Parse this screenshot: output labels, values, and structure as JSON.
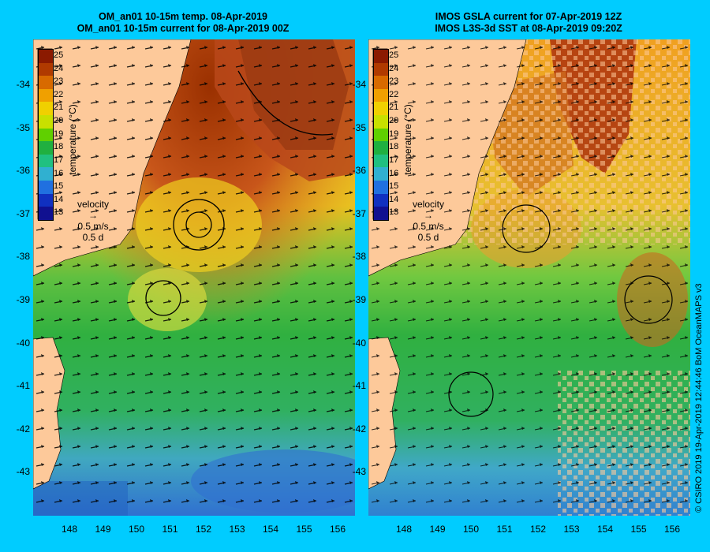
{
  "left_panel": {
    "title_line1": "OM_an01 10-15m temp. 08-Apr-2019",
    "title_line2": "OM_an01 10-15m current for 08-Apr-2019 00Z"
  },
  "right_panel": {
    "title_line1": "IMOS GSLA current for 07-Apr-2019 12Z",
    "title_line2": "IMOS L3S-3d SST at 08-Apr-2019 09:20Z"
  },
  "colorbar": {
    "ticks": [
      "25",
      "24",
      "23",
      "22",
      "21",
      "20",
      "19",
      "18",
      "17",
      "16",
      "15",
      "14",
      "13"
    ],
    "label": "temperature (°C)",
    "colors": [
      "#8b1a00",
      "#b03a00",
      "#d86a00",
      "#f0a000",
      "#f0d000",
      "#c8e000",
      "#60d000",
      "#20b040",
      "#20c080",
      "#30b0d0",
      "#2070e0",
      "#1030c0",
      "#101090"
    ]
  },
  "velocity_legend": {
    "title": "velocity",
    "speed": "0.5 m/s",
    "time": "0.5 d"
  },
  "y_axis_ticks": [
    "-34",
    "-35",
    "-36",
    "-37",
    "-38",
    "-39",
    "-40",
    "-41",
    "-42",
    "-43"
  ],
  "x_axis_ticks": [
    "148",
    "149",
    "150",
    "151",
    "152",
    "153",
    "154",
    "155",
    "156"
  ],
  "credit": "© CSIRO 2019   19-Apr-2019 12:44:46 BoM OceanMAPS v3",
  "map_colors": {
    "background": "#00ccff",
    "land": "#fdc99a",
    "warm": "#d56a1a",
    "hot": "#a03a10",
    "mid": "#e8a020",
    "yellow": "#e8d020",
    "green": "#30b040",
    "teal": "#20b080",
    "cool": "#30a0d0",
    "cold": "#2060d0"
  }
}
